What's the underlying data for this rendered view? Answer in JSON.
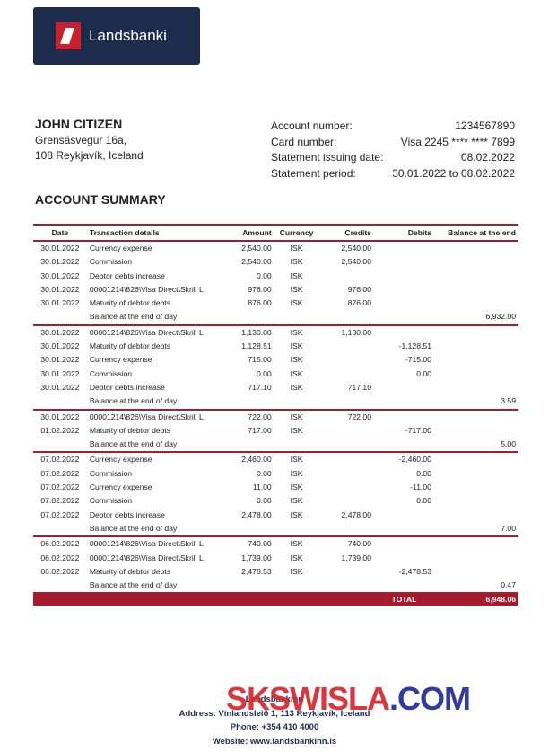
{
  "logo": {
    "text": "Landsbanki"
  },
  "customer": {
    "name": "JOHN CITIZEN",
    "address": [
      "Grensásvegur 16a,",
      "108 Reykjavík, Iceland"
    ]
  },
  "account_info": [
    {
      "label": "Account number:",
      "value": "1234567890"
    },
    {
      "label": "Card number:",
      "value": "Visa 2245 **** **** 7899"
    },
    {
      "label": "Statement issuing date:",
      "value": "08.02.2022"
    },
    {
      "label": "Statement period:",
      "value": "30.01.2022 to 08.02.2022"
    }
  ],
  "section_title": "ACCOUNT SUMMARY",
  "table": {
    "header": {
      "date": "Date",
      "details": "Transaction details",
      "amount": "Amount",
      "currency": "Currency",
      "credits": "Credits",
      "debits": "Debits",
      "balance": "Balance at the end"
    },
    "groups": [
      {
        "rows": [
          {
            "date": "30.01.2022",
            "details": "Currency expense",
            "amount": "2,540.00",
            "currency": "ISK",
            "credits": "2,540.00"
          },
          {
            "date": "30.01.2022",
            "details": "Commission",
            "amount": "2,540.00",
            "currency": "ISK",
            "credits": "2,540.00"
          },
          {
            "date": "30.01.2022",
            "details": "Debtor debts increase",
            "amount": "0.00",
            "currency": "ISK"
          },
          {
            "date": "30.01.2022",
            "details": "00001214\\826\\Visa Direct\\Skrill L",
            "amount": "976.00",
            "currency": "ISK",
            "credits": "976.00"
          },
          {
            "date": "30.01.2022",
            "details": "Maturity of debtor debts",
            "amount": "876.00",
            "currency": "ISK",
            "credits": "876.00"
          },
          {
            "details": "Balance at the end of day",
            "balance": "6,932.00"
          }
        ]
      },
      {
        "rows": [
          {
            "date": "30.01.2022",
            "details": "00001214\\826\\Visa Direct\\Skrill L",
            "amount": "1,130.00",
            "currency": "ISK",
            "credits": "1,130.00"
          },
          {
            "date": "30.01.2022",
            "details": "Maturity of debtor debts",
            "amount": "1,128.51",
            "currency": "ISK",
            "debits": "-1,128.51"
          },
          {
            "date": "30.01.2022",
            "details": "Currency expense",
            "amount": "715.00",
            "currency": "ISK",
            "debits": "-715.00"
          },
          {
            "date": "30.01.2022",
            "details": "Commission",
            "amount": "0.00",
            "currency": "ISK",
            "debits": "0.00"
          },
          {
            "date": "30.01.2022",
            "details": "Debtor debts increase",
            "amount": "717.10",
            "currency": "ISK",
            "credits": "717.10"
          },
          {
            "details": "Balance at the end of day",
            "balance": "3.59"
          }
        ]
      },
      {
        "rows": [
          {
            "date": "30.01.2022",
            "details": "00001214\\826\\Visa Direct\\Skrill L",
            "amount": "722.00",
            "currency": "ISK",
            "credits": "722.00"
          },
          {
            "date": "01.02.2022",
            "details": "Maturity of debtor debts",
            "amount": "717.00",
            "currency": "ISK",
            "debits": "-717.00"
          },
          {
            "details": "Balance at the end of day",
            "balance": "5.00"
          }
        ]
      },
      {
        "rows": [
          {
            "date": "07.02.2022",
            "details": "Currency expense",
            "amount": "2,460.00",
            "currency": "ISK",
            "debits": "-2,460.00"
          },
          {
            "date": "07.02.2022",
            "details": "Commission",
            "amount": "0.00",
            "currency": "ISK",
            "debits": "0.00"
          },
          {
            "date": "07.02.2022",
            "details": "Currency expense",
            "amount": "11.00",
            "currency": "ISK",
            "debits": "-11.00"
          },
          {
            "date": "07.02.2022",
            "details": "Commission",
            "amount": "0.00",
            "currency": "ISK",
            "debits": "0.00"
          },
          {
            "date": "07.02.2022",
            "details": "Debtor debts increase",
            "amount": "2,478.00",
            "currency": "ISK",
            "credits": "2,478.00"
          },
          {
            "details": "Balance at the end of day",
            "balance": "7.00"
          }
        ]
      },
      {
        "rows": [
          {
            "date": "06.02.2022",
            "details": "00001214\\826\\Visa Direct\\Skrill L",
            "amount": "740.00",
            "currency": "ISK",
            "credits": "740.00"
          },
          {
            "date": "06.02.2022",
            "details": "00001214\\826\\Visa Direct\\Skrill L",
            "amount": "1,739.00",
            "currency": "ISK",
            "credits": "1,739.00"
          },
          {
            "date": "06.02.2022",
            "details": "Maturity of debtor debts",
            "amount": "2,478.53",
            "currency": "ISK",
            "debits": "-2,478.53"
          },
          {
            "details": "Balance at the end of day",
            "balance": "0.47"
          }
        ]
      }
    ],
    "total": {
      "label": "TOTAL",
      "value": "6,948.06"
    }
  },
  "footer": {
    "name": "Landsbankinn",
    "address": "Address: Vínlandsleið 1, 113 Reykjavík, Iceland",
    "phone": "Phone: +354 410 4000",
    "website": "Website: www.landsbankinn.is"
  },
  "watermark": {
    "part1": "SKSWISLA",
    "part2": ".COM"
  }
}
